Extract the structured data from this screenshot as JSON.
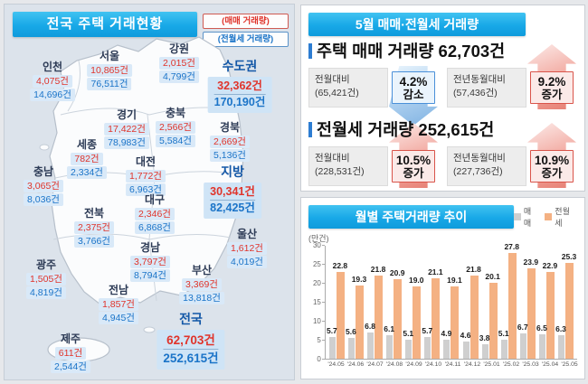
{
  "colors": {
    "title_bar_blue": "#18a8e7",
    "sale_red": "#e0342b",
    "rent_blue": "#1b74c8",
    "number_bg": "#d9e9f8",
    "bar_sale_gray": "#cfcfcf",
    "bar_rent_orange": "#f4b183"
  },
  "map_panel": {
    "title": "전국 주택 거래현황",
    "legend": {
      "sale": "(매매 거래량)",
      "rent": "(전월세 거래량)"
    },
    "regions": [
      {
        "name": "인천",
        "sale": "4,075건",
        "rent": "14,696건"
      },
      {
        "name": "서울",
        "sale": "10,865건",
        "rent": "76,511건"
      },
      {
        "name": "강원",
        "sale": "2,015건",
        "rent": "4,799건"
      },
      {
        "name": "경기",
        "sale": "17,422건",
        "rent": "78,983건"
      },
      {
        "name": "충북",
        "sale": "2,566건",
        "rent": "5,584건"
      },
      {
        "name": "경북",
        "sale": "2,669건",
        "rent": "5,136건"
      },
      {
        "name": "세종",
        "sale": "782건",
        "rent": "2,334건"
      },
      {
        "name": "대전",
        "sale": "1,772건",
        "rent": "6,963건"
      },
      {
        "name": "충남",
        "sale": "3,065건",
        "rent": "8,036건"
      },
      {
        "name": "대구",
        "sale": "2,346건",
        "rent": "6,868건"
      },
      {
        "name": "전북",
        "sale": "2,375건",
        "rent": "3,766건"
      },
      {
        "name": "울산",
        "sale": "1,612건",
        "rent": "4,019건"
      },
      {
        "name": "경남",
        "sale": "3,797건",
        "rent": "8,794건"
      },
      {
        "name": "광주",
        "sale": "1,505건",
        "rent": "4,819건"
      },
      {
        "name": "부산",
        "sale": "3,369건",
        "rent": "13,818건"
      },
      {
        "name": "전남",
        "sale": "1,857건",
        "rent": "4,945건"
      },
      {
        "name": "제주",
        "sale": "611건",
        "rent": "2,544건"
      }
    ],
    "aggregates": [
      {
        "name": "수도권",
        "sale": "32,362건",
        "rent": "170,190건"
      },
      {
        "name": "지방",
        "sale": "30,341건",
        "rent": "82,425건"
      },
      {
        "name": "전국",
        "sale": "62,703건",
        "rent": "252,615건"
      }
    ]
  },
  "summary_panel": {
    "title": "5월 매매·전월세 거래량",
    "sections": [
      {
        "heading": "주택 매매 거래량 62,703건",
        "comparisons": [
          {
            "label": "전월대비",
            "base": "(65,421건)",
            "pct": "4.2%",
            "word": "감소",
            "direction": "down"
          },
          {
            "label": "전년동월대비",
            "base": "(57,436건)",
            "pct": "9.2%",
            "word": "증가",
            "direction": "up"
          }
        ]
      },
      {
        "heading": "전월세 거래량 252,615건",
        "comparisons": [
          {
            "label": "전월대비",
            "base": "(228,531건)",
            "pct": "10.5%",
            "word": "증가",
            "direction": "up"
          },
          {
            "label": "전년동월대비",
            "base": "(227,736건)",
            "pct": "10.9%",
            "word": "증가",
            "direction": "up"
          }
        ]
      }
    ]
  },
  "chart_panel": {
    "title": "월별 주택거래량 추이",
    "unit_label": "(만건)"
  },
  "chart_data": {
    "type": "bar",
    "title": "월별 주택거래량 추이",
    "ylabel": "(만건)",
    "categories": [
      "'24.05",
      "'24.06",
      "'24.07",
      "'24.08",
      "'24.09",
      "'24.10",
      "'24.11",
      "'24.12",
      "'25.01",
      "'25.02",
      "'25.03",
      "'25.04",
      "'25.05"
    ],
    "series": [
      {
        "name": "매매",
        "color": "#cfcfcf",
        "values": [
          5.7,
          5.6,
          6.8,
          6.1,
          5.1,
          5.7,
          4.9,
          4.6,
          3.8,
          5.1,
          6.7,
          6.5,
          6.3
        ]
      },
      {
        "name": "전월세",
        "color": "#f4b183",
        "values": [
          22.8,
          19.3,
          21.8,
          20.9,
          19.0,
          21.1,
          19.1,
          21.8,
          20.1,
          27.8,
          23.9,
          22.9,
          25.3
        ]
      }
    ],
    "ylim": [
      0,
      30
    ],
    "yticks": [
      0,
      5,
      10,
      15,
      20,
      25,
      30
    ],
    "legend_position": "top-right",
    "grid": false
  }
}
